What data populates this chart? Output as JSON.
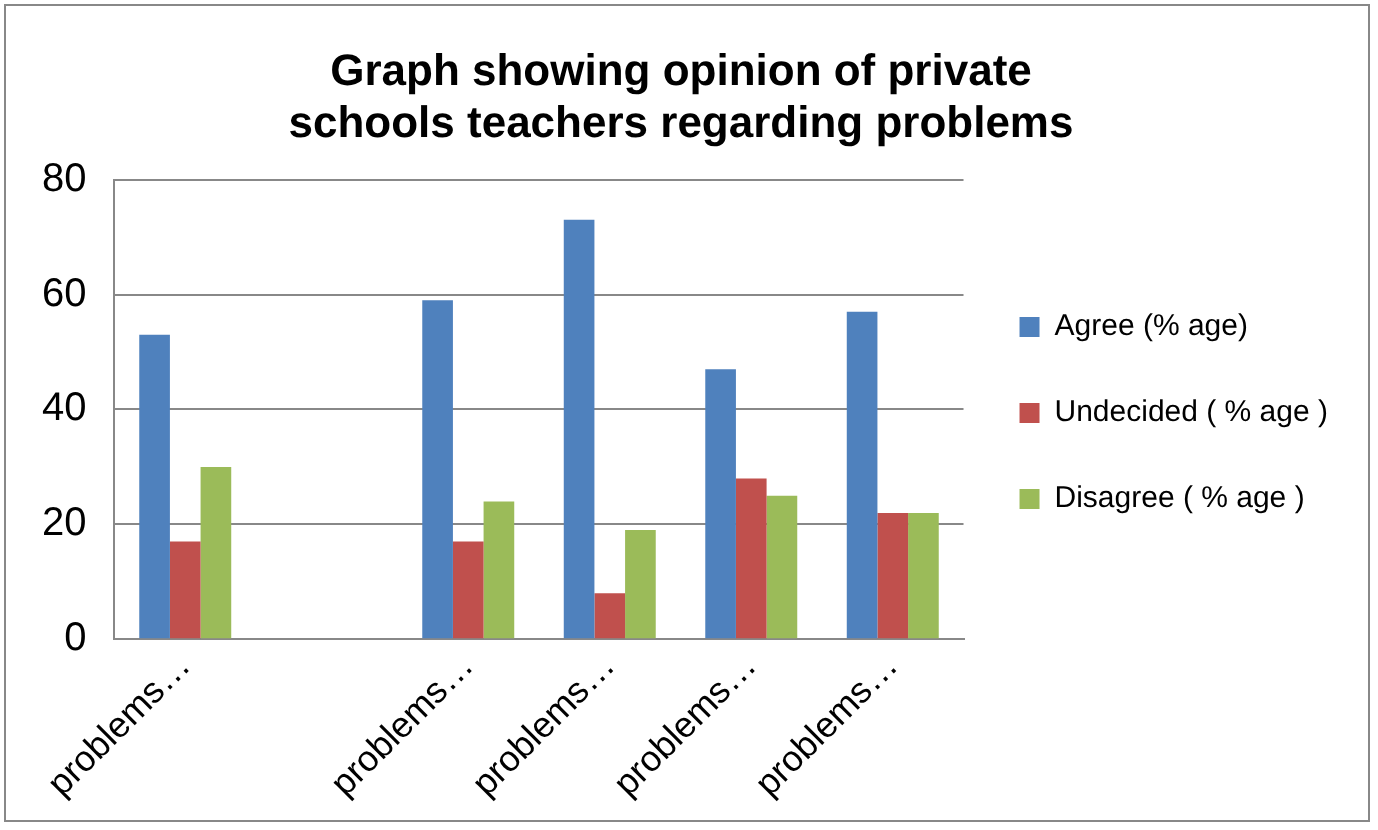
{
  "chart_data": {
    "type": "bar",
    "title": "Graph showing opinion of private schools teachers regarding problems",
    "categories": [
      "problems…",
      null,
      "problems…",
      "problems…",
      "problems…",
      "problems…"
    ],
    "series": [
      {
        "name": "Agree (% age)",
        "color": "#4f81bd",
        "values": [
          53,
          null,
          59,
          73,
          47,
          57
        ]
      },
      {
        "name": "Undecided ( % age )",
        "color": "#c0504d",
        "values": [
          17,
          null,
          17,
          8,
          28,
          22
        ]
      },
      {
        "name": "Disagree ( % age )",
        "color": "#9bbb59",
        "values": [
          30,
          null,
          24,
          19,
          25,
          22
        ]
      }
    ],
    "ylim": [
      0,
      80
    ],
    "yticks": [
      0,
      20,
      40,
      60,
      80
    ],
    "grid": "y",
    "legend": "right"
  }
}
